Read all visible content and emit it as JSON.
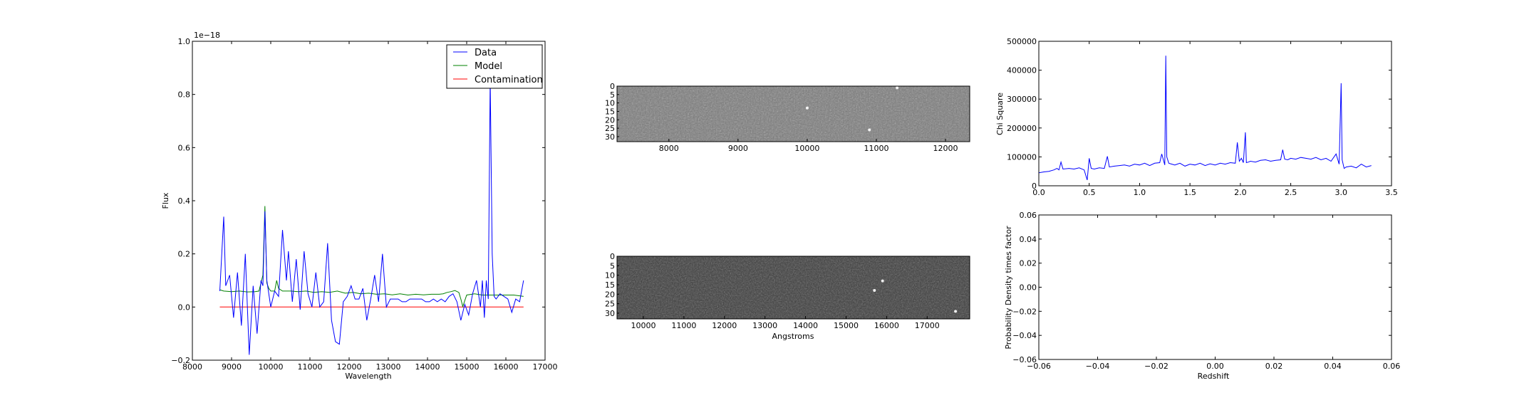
{
  "chart_data": [
    {
      "id": "spectrum",
      "type": "line",
      "title": "",
      "xlabel": "Wavelength",
      "ylabel": "Flux",
      "offset_text": "1e−18",
      "xlim": [
        8000,
        17000
      ],
      "ylim": [
        -0.2,
        1.0
      ],
      "xticks": [
        8000,
        9000,
        10000,
        11000,
        12000,
        13000,
        14000,
        15000,
        16000,
        17000
      ],
      "xtick_labels": [
        "8000",
        "9000",
        "10000",
        "11000",
        "12000",
        "13000",
        "14000",
        "15000",
        "16000",
        "17000"
      ],
      "yticks": [
        -0.2,
        0.0,
        0.2,
        0.4,
        0.6,
        0.8,
        1.0
      ],
      "ytick_labels": [
        "−0.2",
        "0.0",
        "0.2",
        "0.4",
        "0.6",
        "0.8",
        "1.0"
      ],
      "legend_position": "upper-right",
      "series": [
        {
          "name": "Data",
          "color": "#0000ff",
          "x": [
            8700,
            8800,
            8850,
            8950,
            9050,
            9150,
            9250,
            9350,
            9450,
            9550,
            9650,
            9750,
            9800,
            9850,
            9900,
            10000,
            10100,
            10200,
            10300,
            10400,
            10450,
            10550,
            10650,
            10750,
            10850,
            10950,
            11050,
            11150,
            11250,
            11350,
            11450,
            11550,
            11650,
            11750,
            11850,
            11950,
            12050,
            12150,
            12250,
            12350,
            12450,
            12550,
            12650,
            12750,
            12850,
            12950,
            13050,
            13150,
            13250,
            13350,
            13450,
            13550,
            13650,
            13750,
            13850,
            13950,
            14050,
            14150,
            14250,
            14350,
            14450,
            14550,
            14650,
            14750,
            14850,
            14950,
            15050,
            15150,
            15250,
            15350,
            15400,
            15450,
            15500,
            15550,
            15600,
            15650,
            15700,
            15750,
            15850,
            15950,
            16050,
            16150,
            16250,
            16350,
            16450
          ],
          "y": [
            0.06,
            0.34,
            0.08,
            0.12,
            -0.04,
            0.13,
            -0.07,
            0.2,
            -0.18,
            0.08,
            -0.1,
            0.1,
            0.08,
            0.36,
            0.1,
            0.0,
            0.06,
            0.04,
            0.29,
            0.1,
            0.21,
            0.02,
            0.18,
            -0.01,
            0.21,
            0.05,
            0.0,
            0.13,
            0.0,
            0.02,
            0.24,
            -0.05,
            -0.13,
            -0.14,
            0.02,
            0.04,
            0.08,
            0.03,
            0.03,
            0.07,
            -0.05,
            0.03,
            0.12,
            0.02,
            0.2,
            0.0,
            0.03,
            0.03,
            0.03,
            0.02,
            0.02,
            0.03,
            0.03,
            0.03,
            0.03,
            0.02,
            0.02,
            0.03,
            0.02,
            0.03,
            0.02,
            0.04,
            0.05,
            0.02,
            -0.05,
            0.01,
            -0.03,
            0.05,
            0.1,
            0.0,
            0.1,
            -0.04,
            0.1,
            0.03,
            0.86,
            0.2,
            0.04,
            0.03,
            0.05,
            0.04,
            0.03,
            -0.02,
            0.03,
            0.02,
            0.1
          ]
        },
        {
          "name": "Model",
          "color": "#008000",
          "x": [
            8700,
            8800,
            9000,
            9200,
            9400,
            9600,
            9700,
            9800,
            9850,
            9900,
            9950,
            10000,
            10100,
            10150,
            10200,
            10300,
            10500,
            10700,
            10900,
            11100,
            11300,
            11500,
            11700,
            11900,
            12100,
            12300,
            12500,
            12700,
            12900,
            13100,
            13300,
            13500,
            13700,
            13900,
            14100,
            14300,
            14400,
            14500,
            14600,
            14700,
            14800,
            14850,
            14900,
            15000,
            15200,
            15400,
            15600,
            15800,
            16000,
            16200,
            16450
          ],
          "y": [
            0.065,
            0.06,
            0.058,
            0.06,
            0.057,
            0.058,
            0.06,
            0.12,
            0.38,
            0.09,
            0.07,
            0.06,
            0.06,
            0.1,
            0.07,
            0.06,
            0.06,
            0.058,
            0.06,
            0.055,
            0.058,
            0.055,
            0.06,
            0.052,
            0.055,
            0.05,
            0.052,
            0.048,
            0.05,
            0.046,
            0.05,
            0.045,
            0.048,
            0.046,
            0.048,
            0.048,
            0.05,
            0.055,
            0.058,
            0.062,
            0.055,
            0.03,
            0.002,
            0.045,
            0.05,
            0.045,
            0.045,
            0.045,
            0.045,
            0.045,
            0.04
          ]
        },
        {
          "name": "Contamination",
          "color": "#ff0000",
          "x": [
            8700,
            16450
          ],
          "y": [
            0.0,
            0.0
          ]
        }
      ]
    },
    {
      "id": "image-top",
      "type": "heatmap",
      "colormap": "gray",
      "xlim": [
        7250,
        12350
      ],
      "ylim": [
        33,
        0
      ],
      "xticks": [
        8000,
        9000,
        10000,
        11000,
        12000
      ],
      "xtick_labels": [
        "8000",
        "9000",
        "10000",
        "11000",
        "12000"
      ],
      "yticks": [
        0,
        5,
        10,
        15,
        20,
        25,
        30
      ],
      "ytick_labels": [
        "0",
        "5",
        "10",
        "15",
        "20",
        "25",
        "30"
      ],
      "bright_spots": [
        [
          11300,
          1
        ],
        [
          10000,
          13
        ],
        [
          10900,
          26
        ]
      ]
    },
    {
      "id": "image-bottom",
      "type": "heatmap",
      "colormap": "gray",
      "xlabel": "Angstroms",
      "xlim": [
        9350,
        18050
      ],
      "ylim": [
        33,
        0
      ],
      "xticks": [
        10000,
        11000,
        12000,
        13000,
        14000,
        15000,
        16000,
        17000
      ],
      "xtick_labels": [
        "10000",
        "11000",
        "12000",
        "13000",
        "14000",
        "15000",
        "16000",
        "17000"
      ],
      "yticks": [
        0,
        5,
        10,
        15,
        20,
        25,
        30
      ],
      "ytick_labels": [
        "0",
        "5",
        "10",
        "15",
        "20",
        "25",
        "30"
      ],
      "bright_spots": [
        [
          15900,
          13
        ],
        [
          15700,
          18
        ],
        [
          17700,
          29
        ]
      ]
    },
    {
      "id": "chi-square",
      "type": "line",
      "ylabel": "Chi Square",
      "xlabel": "",
      "xlim": [
        0.0,
        3.5
      ],
      "ylim": [
        0,
        500000
      ],
      "xticks": [
        0.0,
        0.5,
        1.0,
        1.5,
        2.0,
        2.5,
        3.0,
        3.5
      ],
      "xtick_labels": [
        "0.0",
        "0.5",
        "1.0",
        "1.5",
        "2.0",
        "2.5",
        "3.0",
        "3.5"
      ],
      "yticks": [
        0,
        100000,
        200000,
        300000,
        400000,
        500000
      ],
      "ytick_labels": [
        "0",
        "100000",
        "200000",
        "300000",
        "400000",
        "500000"
      ],
      "series": [
        {
          "name": "Chi Square",
          "color": "#0000ff",
          "x": [
            0.0,
            0.05,
            0.1,
            0.15,
            0.18,
            0.2,
            0.22,
            0.24,
            0.3,
            0.35,
            0.4,
            0.45,
            0.48,
            0.5,
            0.52,
            0.55,
            0.6,
            0.65,
            0.68,
            0.7,
            0.75,
            0.8,
            0.85,
            0.9,
            0.95,
            1.0,
            1.05,
            1.1,
            1.15,
            1.2,
            1.22,
            1.25,
            1.26,
            1.27,
            1.29,
            1.32,
            1.35,
            1.4,
            1.45,
            1.5,
            1.55,
            1.6,
            1.65,
            1.7,
            1.75,
            1.8,
            1.85,
            1.9,
            1.95,
            1.97,
            1.99,
            2.01,
            2.03,
            2.05,
            2.06,
            2.08,
            2.1,
            2.15,
            2.2,
            2.25,
            2.3,
            2.35,
            2.4,
            2.42,
            2.44,
            2.47,
            2.5,
            2.55,
            2.6,
            2.65,
            2.7,
            2.75,
            2.8,
            2.85,
            2.9,
            2.95,
            2.98,
            3.0,
            3.01,
            3.03,
            3.05,
            3.1,
            3.15,
            3.2,
            3.25,
            3.3
          ],
          "y": [
            45000,
            48000,
            50000,
            55000,
            60000,
            55000,
            82000,
            58000,
            60000,
            58000,
            62000,
            55000,
            20000,
            95000,
            60000,
            58000,
            62000,
            60000,
            102000,
            65000,
            68000,
            70000,
            72000,
            68000,
            75000,
            72000,
            78000,
            70000,
            78000,
            80000,
            110000,
            72000,
            450000,
            100000,
            78000,
            75000,
            72000,
            78000,
            68000,
            75000,
            72000,
            78000,
            70000,
            76000,
            72000,
            78000,
            75000,
            80000,
            78000,
            150000,
            85000,
            95000,
            80000,
            185000,
            80000,
            82000,
            85000,
            82000,
            88000,
            90000,
            85000,
            88000,
            90000,
            125000,
            92000,
            90000,
            95000,
            92000,
            98000,
            95000,
            92000,
            98000,
            90000,
            95000,
            85000,
            110000,
            75000,
            355000,
            90000,
            60000,
            65000,
            68000,
            62000,
            75000,
            65000,
            70000
          ]
        }
      ]
    },
    {
      "id": "probability",
      "type": "line",
      "ylabel": "Probability Density times factor",
      "xlabel": "Redshift",
      "xlim": [
        -0.06,
        0.06
      ],
      "ylim": [
        -0.06,
        0.06
      ],
      "xticks": [
        -0.06,
        -0.04,
        -0.02,
        0.0,
        0.02,
        0.04,
        0.06
      ],
      "xtick_labels": [
        "−0.06",
        "−0.04",
        "−0.02",
        "0.00",
        "0.02",
        "0.04",
        "0.06"
      ],
      "yticks": [
        -0.06,
        -0.04,
        -0.02,
        0.0,
        0.02,
        0.04,
        0.06
      ],
      "ytick_labels": [
        "−0.06",
        "−0.04",
        "−0.02",
        "0.00",
        "0.02",
        "0.04",
        "0.06"
      ],
      "series": []
    }
  ]
}
